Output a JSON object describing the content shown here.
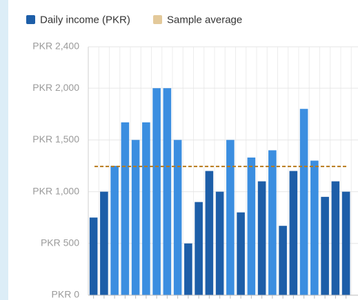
{
  "chart_data": {
    "type": "bar",
    "series": [
      {
        "name": "Daily income (PKR)",
        "color": "#1d5ea8",
        "colors": [
          "#1d5ea8",
          "#1d5ea8",
          "#3b8ee0",
          "#3b8ee0",
          "#3b8ee0",
          "#3b8ee0",
          "#3b8ee0",
          "#3b8ee0",
          "#3b8ee0",
          "#1d5ea8",
          "#1d5ea8",
          "#1d5ea8",
          "#1d5ea8",
          "#3b8ee0",
          "#1d5ea8",
          "#3b8ee0",
          "#1d5ea8",
          "#3b8ee0",
          "#1d5ea8",
          "#1d5ea8",
          "#3b8ee0",
          "#3b8ee0",
          "#1d5ea8",
          "#1d5ea8",
          "#1d5ea8"
        ],
        "values": [
          750,
          1000,
          1250,
          1670,
          1500,
          1670,
          2000,
          2000,
          1500,
          500,
          900,
          1200,
          1000,
          1500,
          800,
          1330,
          1100,
          1400,
          670,
          1200,
          1800,
          1300,
          950,
          1100,
          1000
        ]
      },
      {
        "name": "Sample average",
        "color": "#e3c99a",
        "line_color": "#b8791a",
        "value": 1244
      }
    ],
    "categories": [
      null,
      null,
      null,
      null,
      null,
      null,
      null,
      null,
      null,
      null,
      null,
      null,
      null,
      null,
      null,
      null,
      null,
      null,
      null,
      null,
      null,
      null,
      null,
      null,
      null
    ],
    "ylim": [
      0,
      2400
    ],
    "yticks": [
      {
        "value": 0,
        "label": "PKR 0"
      },
      {
        "value": 500,
        "label": "PKR 500"
      },
      {
        "value": 1000,
        "label": "PKR 1,000"
      },
      {
        "value": 1500,
        "label": "PKR 1,500"
      },
      {
        "value": 2000,
        "label": "PKR 2,000"
      },
      {
        "value": 2400,
        "label": "PKR 2,400"
      }
    ],
    "grid": true
  }
}
